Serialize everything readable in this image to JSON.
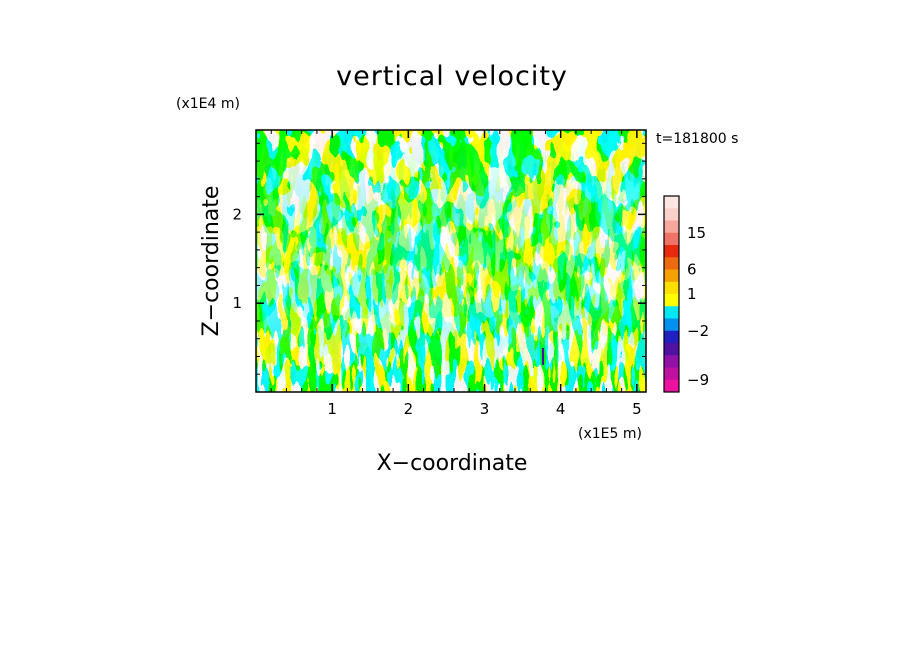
{
  "chart_data": {
    "type": "heatmap",
    "title": "vertical velocity",
    "xlabel": "X−coordinate",
    "ylabel": "Z−coordinate",
    "x_unit": "(x1E5 m)",
    "y_unit": "(x1E4 m)",
    "time_label": "t=181800 s",
    "xlim": [
      0,
      5.12
    ],
    "ylim": [
      0,
      2.95
    ],
    "x_ticks": [
      1,
      2,
      3,
      4,
      5
    ],
    "x_tick_labels": [
      "1",
      "2",
      "3",
      "4",
      "5"
    ],
    "y_ticks": [
      1,
      2
    ],
    "y_tick_labels": [
      "1",
      "2"
    ],
    "colorbar": {
      "tick_labels": [
        "15",
        "6",
        "1",
        "−2",
        "−9"
      ],
      "tick_values": [
        15,
        6,
        1,
        -2,
        -9
      ],
      "levels": [
        {
          "value": 21,
          "color": "#fde6e4"
        },
        {
          "value": 18,
          "color": "#fbd0c8"
        },
        {
          "value": 15,
          "color": "#f6a79e"
        },
        {
          "value": 12,
          "color": "#f07466"
        },
        {
          "value": 9,
          "color": "#e62a10"
        },
        {
          "value": 6,
          "color": "#ee6a10"
        },
        {
          "value": 3,
          "color": "#f4a000"
        },
        {
          "value": 1,
          "color": "#ffe000"
        },
        {
          "value": 0,
          "color": "#ffff00"
        },
        {
          "value": -1,
          "color": "#00e6f5"
        },
        {
          "value": -2,
          "color": "#0090f0"
        },
        {
          "value": -3,
          "color": "#2020c0"
        },
        {
          "value": -5,
          "color": "#5010a0"
        },
        {
          "value": -7,
          "color": "#9010a8"
        },
        {
          "value": -9,
          "color": "#c010a0"
        },
        {
          "value": -11,
          "color": "#ee10a0"
        }
      ]
    },
    "dominant_colors": {
      "positive": "#ffff00",
      "negative": "#00e6f5"
    },
    "grid": false,
    "legend": "right"
  }
}
